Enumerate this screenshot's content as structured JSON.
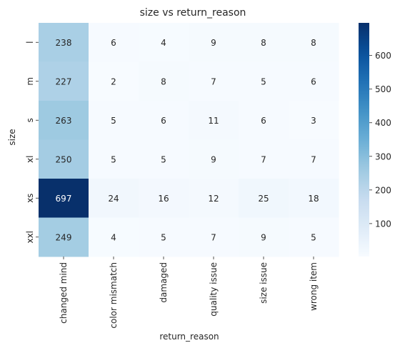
{
  "chart_data": {
    "type": "heatmap",
    "title": "size vs return_reason",
    "xlabel": "return_reason",
    "ylabel": "size",
    "x_categories": [
      "changed mind",
      "color mismatch",
      "damaged",
      "quality issue",
      "size issue",
      "wrong item"
    ],
    "y_categories": [
      "l",
      "m",
      "s",
      "xl",
      "xs",
      "xxl"
    ],
    "values": [
      [
        238,
        6,
        4,
        9,
        8,
        8
      ],
      [
        227,
        2,
        8,
        7,
        5,
        6
      ],
      [
        263,
        5,
        6,
        11,
        6,
        3
      ],
      [
        250,
        5,
        5,
        9,
        7,
        7
      ],
      [
        697,
        24,
        16,
        12,
        25,
        18
      ],
      [
        249,
        4,
        5,
        7,
        9,
        5
      ]
    ],
    "colorbar": {
      "colormap": "Blues",
      "min": 2,
      "max": 697,
      "ticks": [
        100,
        200,
        300,
        400,
        500,
        600
      ]
    }
  }
}
